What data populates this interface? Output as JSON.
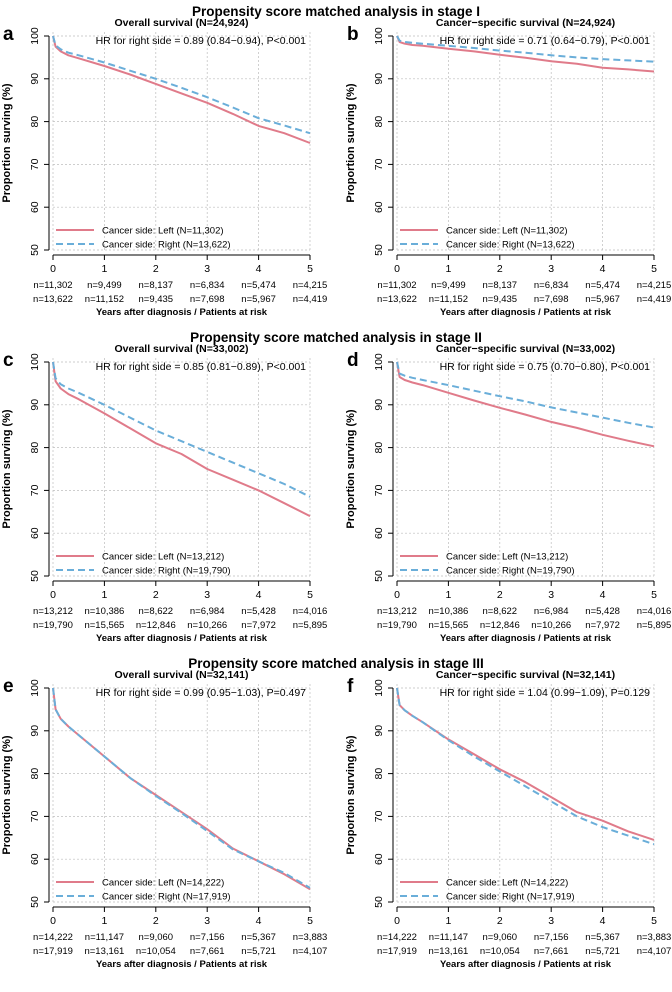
{
  "figure": {
    "ylabel": "Proportion surving (%)",
    "xlabel": "Years after diagnosis / Patients at risk",
    "legend_left": "Cancer side: Left",
    "legend_right": "Cancer side: Right"
  },
  "colors": {
    "left": "#e07b8a",
    "right": "#6aaed9",
    "grid": "#bdbdbd",
    "axis": "#000000"
  },
  "sections": [
    {
      "title": "Propensity score matched analysis in stage I"
    },
    {
      "title": "Propensity score matched analysis in stage II"
    },
    {
      "title": "Propensity score matched analysis in stage III"
    }
  ],
  "chart_data": [
    {
      "type": "line",
      "panel_label": "a",
      "title": "Overall survival (N=24,924)",
      "hr_text": "HR for right side = 0.89 (0.84−0.94), P<0.001",
      "x": [
        0,
        0.05,
        0.15,
        0.3,
        0.5,
        1,
        1.5,
        2,
        2.5,
        3,
        3.5,
        4,
        4.5,
        5
      ],
      "series": [
        {
          "name": "Cancer side: Left (N=11,302)",
          "values": [
            100,
            97.5,
            96.4,
            95.5,
            94.8,
            93.0,
            91.0,
            88.8,
            86.6,
            84.4,
            81.8,
            79.0,
            77.3,
            75.0
          ]
        },
        {
          "name": "Cancer side: Right (N=13,622)",
          "values": [
            100,
            97.8,
            96.9,
            96.1,
            95.5,
            93.8,
            91.9,
            90.0,
            87.9,
            85.7,
            83.3,
            80.8,
            79.1,
            77.3
          ]
        }
      ],
      "xlim": [
        0,
        5
      ],
      "ylim": [
        50,
        100
      ],
      "xticks": [
        0,
        1,
        2,
        3,
        4,
        5
      ],
      "yticks": [
        50,
        60,
        70,
        80,
        90,
        100
      ],
      "risk_left": [
        "n=11,302",
        "n=9,499",
        "n=8,137",
        "n=6,834",
        "n=5,474",
        "n=4,215"
      ],
      "risk_right": [
        "n=13,622",
        "n=11,152",
        "n=9,435",
        "n=7,698",
        "n=5,967",
        "n=4,419"
      ],
      "ylabel": "Proportion surving (%)",
      "xlabel": "Years after diagnosis / Patients at risk"
    },
    {
      "type": "line",
      "panel_label": "b",
      "title": "Cancer−specific survival (N=24,924)",
      "hr_text": "HR for right side = 0.71 (0.64−0.79), P<0.001",
      "x": [
        0,
        0.05,
        0.15,
        0.3,
        0.5,
        1,
        1.5,
        2,
        2.5,
        3,
        3.5,
        4,
        4.5,
        5
      ],
      "series": [
        {
          "name": "Cancer side: Left (N=11,302)",
          "values": [
            100,
            98.6,
            98.2,
            97.9,
            97.7,
            97.0,
            96.4,
            95.6,
            94.9,
            94.1,
            93.5,
            92.6,
            92.2,
            91.7
          ]
        },
        {
          "name": "Cancer side: Right (N=13,622)",
          "values": [
            100,
            98.9,
            98.6,
            98.4,
            98.2,
            97.7,
            97.2,
            96.6,
            96.1,
            95.5,
            95.0,
            94.6,
            94.3,
            94.0
          ]
        }
      ],
      "xlim": [
        0,
        5
      ],
      "ylim": [
        50,
        100
      ],
      "xticks": [
        0,
        1,
        2,
        3,
        4,
        5
      ],
      "yticks": [
        50,
        60,
        70,
        80,
        90,
        100
      ],
      "risk_left": [
        "n=11,302",
        "n=9,499",
        "n=8,137",
        "n=6,834",
        "n=5,474",
        "n=4,215"
      ],
      "risk_right": [
        "n=13,622",
        "n=11,152",
        "n=9,435",
        "n=7,698",
        "n=5,967",
        "n=4,419"
      ],
      "ylabel": "Proportion surving (%)",
      "xlabel": "Years after diagnosis / Patients at risk"
    },
    {
      "type": "line",
      "panel_label": "c",
      "title": "Overall survival (N=33,002)",
      "hr_text": "HR for right side = 0.85 (0.81−0.89), P<0.001",
      "x": [
        0,
        0.05,
        0.15,
        0.3,
        0.5,
        1,
        1.5,
        2,
        2.5,
        3,
        3.5,
        4,
        4.5,
        5
      ],
      "series": [
        {
          "name": "Cancer side: Left (N=13,212)",
          "values": [
            100,
            95.5,
            93.8,
            92.5,
            91.3,
            88.0,
            84.5,
            81.0,
            78.5,
            75.0,
            72.5,
            70.0,
            67.0,
            64.0
          ]
        },
        {
          "name": "Cancer side: Right (N=19,790)",
          "values": [
            100,
            96.2,
            94.8,
            93.8,
            92.8,
            90.0,
            87.0,
            84.0,
            81.5,
            79.0,
            76.5,
            74.0,
            71.5,
            68.5
          ]
        }
      ],
      "xlim": [
        0,
        5
      ],
      "ylim": [
        50,
        100
      ],
      "xticks": [
        0,
        1,
        2,
        3,
        4,
        5
      ],
      "yticks": [
        50,
        60,
        70,
        80,
        90,
        100
      ],
      "risk_left": [
        "n=13,212",
        "n=10,386",
        "n=8,622",
        "n=6,984",
        "n=5,428",
        "n=4,016"
      ],
      "risk_right": [
        "n=19,790",
        "n=15,565",
        "n=12,846",
        "n=10,266",
        "n=7,972",
        "n=5,895"
      ],
      "ylabel": "Proportion surving (%)",
      "xlabel": "Years after diagnosis / Patients at risk"
    },
    {
      "type": "line",
      "panel_label": "d",
      "title": "Cancer−specific survival (N=33,002)",
      "hr_text": "HR for right side = 0.75 (0.70−0.80), P<0.001",
      "x": [
        0,
        0.05,
        0.15,
        0.3,
        0.5,
        1,
        1.5,
        2,
        2.5,
        3,
        3.5,
        4,
        4.5,
        5
      ],
      "series": [
        {
          "name": "Cancer side: Left (N=13,212)",
          "values": [
            100,
            96.5,
            95.8,
            95.2,
            94.6,
            92.8,
            91.0,
            89.3,
            87.7,
            86.0,
            84.6,
            83.0,
            81.6,
            80.3
          ]
        },
        {
          "name": "Cancer side: Right (N=19,790)",
          "values": [
            100,
            97.3,
            96.8,
            96.3,
            95.8,
            94.6,
            93.3,
            92.0,
            90.8,
            89.4,
            88.2,
            87.0,
            85.8,
            84.7
          ]
        }
      ],
      "xlim": [
        0,
        5
      ],
      "ylim": [
        50,
        100
      ],
      "xticks": [
        0,
        1,
        2,
        3,
        4,
        5
      ],
      "yticks": [
        50,
        60,
        70,
        80,
        90,
        100
      ],
      "risk_left": [
        "n=13,212",
        "n=10,386",
        "n=8,622",
        "n=6,984",
        "n=5,428",
        "n=4,016"
      ],
      "risk_right": [
        "n=19,790",
        "n=15,565",
        "n=12,846",
        "n=10,266",
        "n=7,972",
        "n=5,895"
      ],
      "ylabel": "Proportion surving (%)",
      "xlabel": "Years after diagnosis / Patients at risk"
    },
    {
      "type": "line",
      "panel_label": "e",
      "title": "Overall survival (N=32,141)",
      "hr_text": "HR for right side = 0.99 (0.95−1.03), P=0.497",
      "x": [
        0,
        0.05,
        0.15,
        0.3,
        0.5,
        1,
        1.5,
        2,
        2.5,
        3,
        3.5,
        4,
        4.5,
        5
      ],
      "series": [
        {
          "name": "Cancer side: Left (N=14,222)",
          "values": [
            100,
            95.0,
            92.8,
            91.0,
            89.0,
            84.0,
            79.0,
            75.0,
            71.0,
            67.0,
            62.5,
            59.5,
            56.5,
            53.0
          ]
        },
        {
          "name": "Cancer side: Right (N=17,919)",
          "values": [
            100,
            95.0,
            92.8,
            91.0,
            89.0,
            84.0,
            79.0,
            74.8,
            70.8,
            66.6,
            62.3,
            59.5,
            56.8,
            53.3
          ]
        }
      ],
      "xlim": [
        0,
        5
      ],
      "ylim": [
        50,
        100
      ],
      "xticks": [
        0,
        1,
        2,
        3,
        4,
        5
      ],
      "yticks": [
        50,
        60,
        70,
        80,
        90,
        100
      ],
      "risk_left": [
        "n=14,222",
        "n=11,147",
        "n=9,060",
        "n=7,156",
        "n=5,367",
        "n=3,883"
      ],
      "risk_right": [
        "n=17,919",
        "n=13,161",
        "n=10,054",
        "n=7,661",
        "n=5,721",
        "n=4,107"
      ],
      "ylabel": "Proportion surving (%)",
      "xlabel": "Years after diagnosis / Patients at risk"
    },
    {
      "type": "line",
      "panel_label": "f",
      "title": "Cancer−specific survival (N=32,141)",
      "hr_text": "HR for right side = 1.04 (0.99−1.09), P=0.129",
      "x": [
        0,
        0.05,
        0.15,
        0.3,
        0.5,
        1,
        1.5,
        2,
        2.5,
        3,
        3.5,
        4,
        4.5,
        5
      ],
      "series": [
        {
          "name": "Cancer side: Left (N=14,222)",
          "values": [
            100,
            96.0,
            94.8,
            93.5,
            92.0,
            88.0,
            84.5,
            81.0,
            78.0,
            74.5,
            71.0,
            69.0,
            66.5,
            64.5
          ]
        },
        {
          "name": "Cancer side: Right (N=17,919)",
          "values": [
            100,
            96.0,
            94.8,
            93.5,
            92.0,
            87.8,
            84.0,
            80.5,
            77.0,
            73.5,
            70.0,
            67.5,
            65.5,
            63.5
          ]
        }
      ],
      "xlim": [
        0,
        5
      ],
      "ylim": [
        50,
        100
      ],
      "xticks": [
        0,
        1,
        2,
        3,
        4,
        5
      ],
      "yticks": [
        50,
        60,
        70,
        80,
        90,
        100
      ],
      "risk_left": [
        "n=14,222",
        "n=11,147",
        "n=9,060",
        "n=7,156",
        "n=5,367",
        "n=3,883"
      ],
      "risk_right": [
        "n=17,919",
        "n=13,161",
        "n=10,054",
        "n=7,661",
        "n=5,721",
        "n=4,107"
      ],
      "ylabel": "Proportion surving (%)",
      "xlabel": "Years after diagnosis / Patients at risk"
    }
  ]
}
